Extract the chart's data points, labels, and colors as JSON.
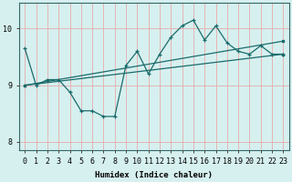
{
  "xlabel": "Humidex (Indice chaleur)",
  "bg_color": "#d6f0ef",
  "grid_color": "#e8aaaa",
  "line_color": "#1a6b6b",
  "xmin": -0.5,
  "xmax": 23.5,
  "ymin": 7.85,
  "ymax": 10.45,
  "yticks": [
    8,
    9,
    10
  ],
  "xticks": [
    0,
    1,
    2,
    3,
    4,
    5,
    6,
    7,
    8,
    9,
    10,
    11,
    12,
    13,
    14,
    15,
    16,
    17,
    18,
    19,
    20,
    21,
    22,
    23
  ],
  "line1_x": [
    0,
    1,
    2,
    3,
    4,
    5,
    6,
    7,
    8,
    9,
    10,
    11,
    12,
    13,
    14,
    15,
    16,
    17,
    18,
    19,
    20,
    21,
    22,
    23
  ],
  "line1_y": [
    9.65,
    9.0,
    9.1,
    9.1,
    8.88,
    8.55,
    8.55,
    8.45,
    8.45,
    9.35,
    9.6,
    9.2,
    9.55,
    9.85,
    10.05,
    10.15,
    9.8,
    10.05,
    9.75,
    9.6,
    9.55,
    9.7,
    9.55,
    9.55
  ],
  "line2_x": [
    0,
    23
  ],
  "line2_y": [
    9.0,
    9.78
  ],
  "line3_x": [
    0,
    23
  ],
  "line3_y": [
    9.0,
    9.55
  ]
}
